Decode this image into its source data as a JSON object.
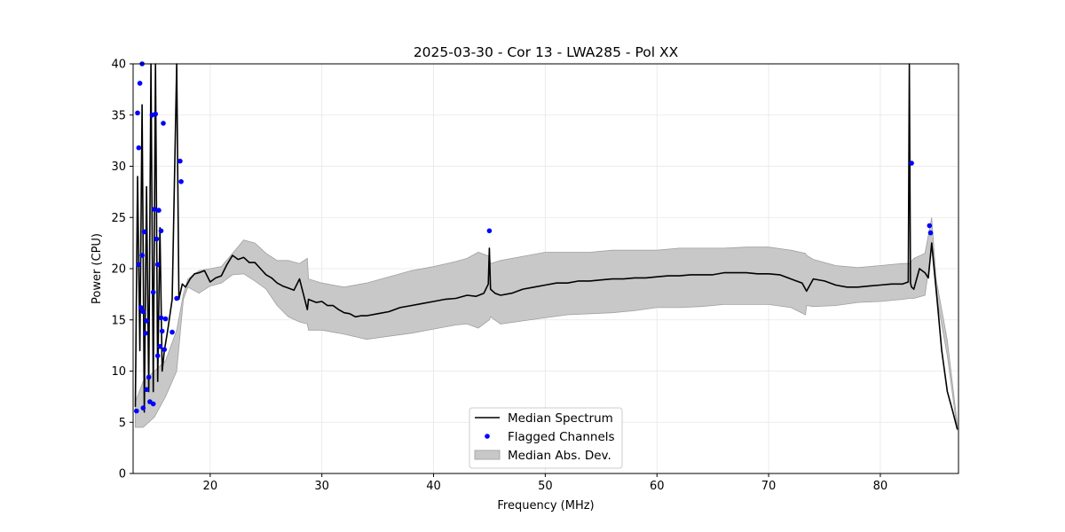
{
  "chart_data": {
    "type": "line",
    "title": "2025-03-30 - Cor 13 - LWA285 - Pol XX",
    "xlabel": "Frequency (MHz)",
    "ylabel": "Power (CPU)",
    "xlim": [
      13.1,
      87.0
    ],
    "ylim": [
      0,
      40
    ],
    "xticks": [
      20,
      30,
      40,
      50,
      60,
      70,
      80
    ],
    "yticks": [
      0,
      5,
      10,
      15,
      20,
      25,
      30,
      35,
      40
    ],
    "grid": true,
    "legend": {
      "location": "lower-center",
      "entries": [
        "Median Spectrum",
        "Flagged Channels",
        "Median Abs. Dev."
      ]
    },
    "series": [
      {
        "name": "Median Spectrum",
        "kind": "line",
        "color": "#000000",
        "x": [
          13.3,
          13.5,
          13.7,
          13.9,
          14.1,
          14.3,
          14.5,
          14.7,
          14.9,
          15.1,
          15.3,
          15.5,
          15.7,
          15.9,
          16.2,
          16.6,
          17.0,
          17.2,
          17.5,
          17.8,
          18.2,
          18.6,
          19.0,
          19.5,
          20.0,
          20.5,
          21.0,
          21.5,
          22.0,
          22.5,
          23.0,
          23.5,
          24.0,
          24.5,
          25.0,
          25.5,
          26.0,
          26.5,
          27.0,
          27.5,
          28.0,
          28.7,
          28.8,
          29.5,
          30.0,
          30.5,
          31.0,
          31.5,
          32.0,
          32.5,
          33.0,
          33.5,
          34.0,
          35.0,
          36.0,
          37.0,
          38.0,
          39.0,
          40.0,
          41.0,
          42.0,
          43.0,
          43.8,
          44.5,
          44.9,
          45.0,
          45.1,
          45.5,
          46.0,
          47.0,
          48.0,
          49.0,
          50.0,
          51.0,
          52.0,
          53.0,
          54.0,
          55.0,
          56.0,
          57.0,
          58.0,
          59.0,
          60.0,
          61.0,
          62.0,
          63.0,
          64.0,
          65.0,
          66.0,
          67.0,
          68.0,
          69.0,
          70.0,
          71.0,
          72.0,
          73.0,
          73.4,
          74.0,
          75.0,
          76.0,
          77.0,
          78.0,
          79.0,
          80.0,
          81.0,
          82.0,
          82.5,
          82.6,
          82.7,
          82.8,
          83.0,
          83.5,
          84.0,
          84.3,
          84.6,
          85.0,
          85.5,
          86.0,
          86.5,
          86.9
        ],
        "y": [
          6.5,
          29.0,
          12.0,
          36.0,
          6.0,
          28.0,
          8.0,
          40.0,
          8.0,
          40.0,
          9.0,
          24.0,
          10.0,
          12.0,
          14.0,
          17.0,
          40.0,
          17.0,
          18.5,
          18.2,
          19.0,
          19.5,
          19.6,
          19.8,
          18.7,
          19.1,
          19.3,
          20.4,
          21.3,
          20.9,
          21.1,
          20.6,
          20.6,
          20.0,
          19.4,
          19.1,
          18.6,
          18.3,
          18.1,
          17.9,
          19.0,
          16.0,
          17.0,
          16.7,
          16.8,
          16.4,
          16.4,
          16.0,
          15.7,
          15.6,
          15.3,
          15.4,
          15.4,
          15.6,
          15.8,
          16.2,
          16.4,
          16.6,
          16.8,
          17.0,
          17.1,
          17.4,
          17.3,
          17.6,
          18.5,
          22.0,
          18.0,
          17.6,
          17.4,
          17.6,
          18.0,
          18.2,
          18.4,
          18.6,
          18.6,
          18.8,
          18.8,
          18.9,
          19.0,
          19.0,
          19.1,
          19.1,
          19.2,
          19.3,
          19.3,
          19.4,
          19.4,
          19.4,
          19.6,
          19.6,
          19.6,
          19.5,
          19.5,
          19.4,
          19.0,
          18.6,
          17.8,
          19.0,
          18.8,
          18.4,
          18.2,
          18.2,
          18.3,
          18.4,
          18.5,
          18.5,
          18.7,
          40.0,
          18.6,
          18.2,
          18.0,
          20.0,
          19.6,
          19.1,
          22.5,
          18.0,
          12.0,
          8.0,
          6.0,
          4.3
        ]
      },
      {
        "name": "Flagged Channels",
        "kind": "scatter",
        "color": "#0000ff",
        "x": [
          13.4,
          13.5,
          13.6,
          13.6,
          13.7,
          13.8,
          13.9,
          13.9,
          14.0,
          14.0,
          14.1,
          14.2,
          14.3,
          14.3,
          14.5,
          14.6,
          14.8,
          14.9,
          14.9,
          15.0,
          15.1,
          15.2,
          15.3,
          15.3,
          15.4,
          15.5,
          15.6,
          15.6,
          15.7,
          15.8,
          15.9,
          16.0,
          17.0,
          17.3,
          17.4,
          16.6,
          45.0,
          82.8,
          84.4,
          84.5
        ],
        "y": [
          6.1,
          35.2,
          31.8,
          20.4,
          38.1,
          16.2,
          40.0,
          21.3,
          6.4,
          15.8,
          23.6,
          13.7,
          8.2,
          14.9,
          9.4,
          7.0,
          35.0,
          6.8,
          17.7,
          25.8,
          35.1,
          22.9,
          11.5,
          20.4,
          25.7,
          12.4,
          15.2,
          23.7,
          13.9,
          34.2,
          12.1,
          15.1,
          17.1,
          30.5,
          28.5,
          13.8,
          23.7,
          30.3,
          24.2,
          23.5
        ]
      },
      {
        "name": "Median Abs. Dev.",
        "kind": "area",
        "color": "#c8c8c8",
        "x": [
          13.3,
          14.0,
          15.0,
          16.0,
          17.0,
          17.6,
          18.0,
          19.0,
          20.0,
          21.0,
          22.0,
          23.0,
          24.0,
          25.0,
          26.0,
          27.0,
          28.0,
          28.7,
          28.8,
          30.0,
          32.0,
          34.0,
          36.0,
          38.0,
          40.0,
          42.0,
          43.0,
          44.0,
          45.0,
          45.1,
          46.0,
          48.0,
          50.0,
          52.0,
          54.0,
          56.0,
          58.0,
          60.0,
          62.0,
          64.0,
          66.0,
          68.0,
          70.0,
          72.0,
          73.3,
          73.4,
          74.0,
          76.0,
          78.0,
          80.0,
          82.0,
          82.6,
          83.0,
          84.0,
          84.6,
          85.0,
          86.0,
          86.9
        ],
        "upper": [
          7.0,
          9.0,
          10.0,
          11.0,
          14.0,
          17.5,
          19.0,
          19.8,
          20.0,
          20.2,
          21.5,
          22.8,
          22.5,
          21.5,
          20.8,
          20.8,
          20.5,
          21.0,
          19.0,
          18.6,
          18.2,
          18.6,
          19.2,
          19.8,
          20.2,
          20.7,
          21.0,
          21.6,
          21.2,
          20.5,
          20.8,
          21.2,
          21.6,
          21.6,
          21.6,
          21.8,
          21.8,
          21.8,
          22.0,
          22.0,
          22.0,
          22.1,
          22.1,
          21.8,
          21.5,
          21.3,
          20.9,
          20.3,
          20.1,
          20.3,
          20.5,
          20.5,
          21.0,
          21.5,
          25.0,
          19.0,
          13.0,
          4.8
        ],
        "lower": [
          4.5,
          4.5,
          5.5,
          7.5,
          10.0,
          17.0,
          18.2,
          17.6,
          18.3,
          18.6,
          19.4,
          19.5,
          18.8,
          18.0,
          16.4,
          15.3,
          14.8,
          14.6,
          14.0,
          14.0,
          13.6,
          13.1,
          13.4,
          13.7,
          14.1,
          14.5,
          14.6,
          14.2,
          15.0,
          15.3,
          14.6,
          14.9,
          15.2,
          15.5,
          15.6,
          15.7,
          15.9,
          16.2,
          16.2,
          16.3,
          16.5,
          16.5,
          16.5,
          16.2,
          15.5,
          16.4,
          16.3,
          16.4,
          16.7,
          16.8,
          17.0,
          17.1,
          17.1,
          17.4,
          22.0,
          17.5,
          11.5,
          4.2
        ]
      }
    ]
  }
}
